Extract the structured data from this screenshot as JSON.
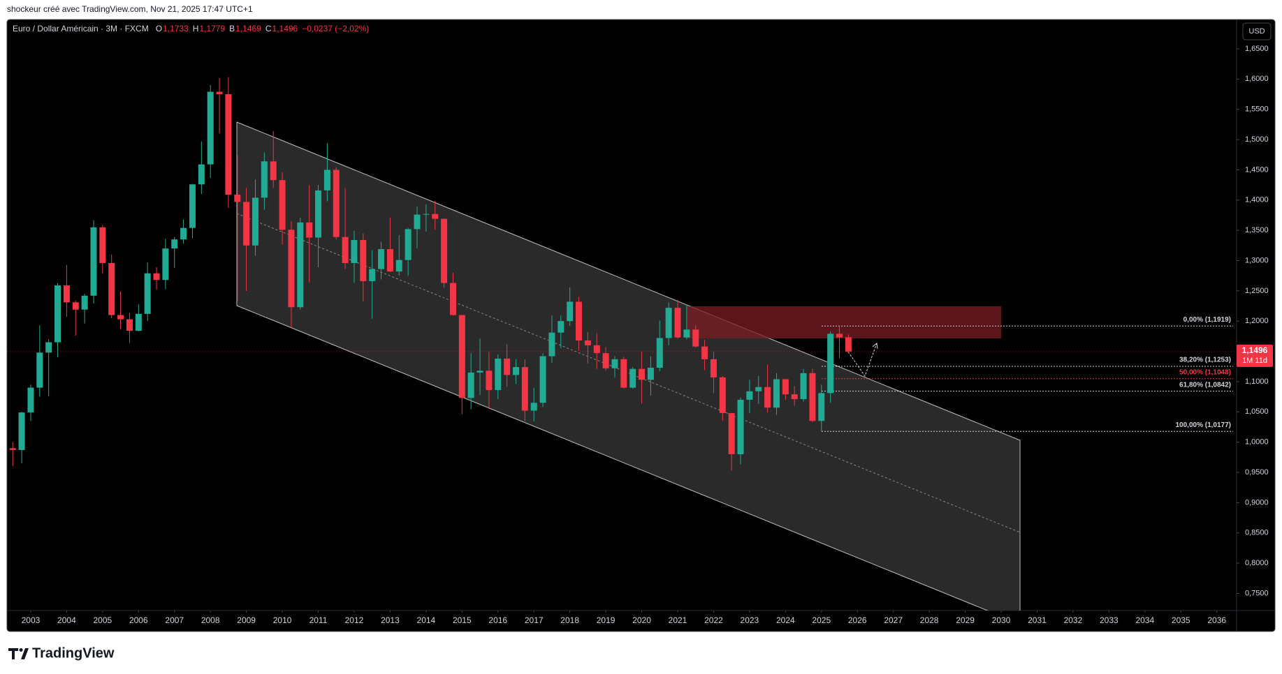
{
  "chart_data": {
    "type": "candlestick",
    "attribution": "shockeur créé avec TradingView.com, Nov 21, 2025 17:47 UTC+1",
    "title": "Euro / Dollar Américain · 3M · FXCM",
    "ohlc_legend": [
      {
        "key": "O",
        "value": "1,1733"
      },
      {
        "key": "H",
        "value": "1,1779"
      },
      {
        "key": "B",
        "value": "1,1469"
      },
      {
        "key": "C",
        "value": "1,1496"
      }
    ],
    "change": "−0,0237 (−2,02%)",
    "currency": "USD",
    "brand": "TradingView",
    "last_price_label": "1,1496",
    "countdown": "1M 11d",
    "up_color": "#22ab94",
    "down_color": "#f23645",
    "grid": false,
    "xlim": [
      2002.34,
      2036.55
    ],
    "xticks": [
      2003,
      2004,
      2005,
      2006,
      2007,
      2008,
      2009,
      2010,
      2011,
      2012,
      2013,
      2014,
      2015,
      2016,
      2017,
      2018,
      2019,
      2020,
      2021,
      2022,
      2023,
      2024,
      2025,
      2026,
      2027,
      2028,
      2029,
      2030,
      2031,
      2032,
      2033,
      2034,
      2035,
      2036
    ],
    "ylim": [
      0.7217,
      1.6984
    ],
    "yticks": [
      {
        "value": 0.75,
        "label": "0,7500"
      },
      {
        "value": 0.8,
        "label": "0,8000"
      },
      {
        "value": 0.85,
        "label": "0,8500"
      },
      {
        "value": 0.9,
        "label": "0,9000"
      },
      {
        "value": 0.95,
        "label": "0,9500"
      },
      {
        "value": 1.0,
        "label": "1,0000"
      },
      {
        "value": 1.05,
        "label": "1,0500"
      },
      {
        "value": 1.1,
        "label": "1,1000"
      },
      {
        "value": 1.15,
        "label": "1,1500"
      },
      {
        "value": 1.2,
        "label": "1,2000"
      },
      {
        "value": 1.25,
        "label": "1,2500"
      },
      {
        "value": 1.3,
        "label": "1,3000"
      },
      {
        "value": 1.35,
        "label": "1,3500"
      },
      {
        "value": 1.4,
        "label": "1,4000"
      },
      {
        "value": 1.45,
        "label": "1,4500"
      },
      {
        "value": 1.5,
        "label": "1,5000"
      },
      {
        "value": 1.55,
        "label": "1,5500"
      },
      {
        "value": 1.6,
        "label": "1,6000"
      },
      {
        "value": 1.65,
        "label": "1,6500"
      }
    ],
    "fib_levels": [
      {
        "label": "0,00% (1,1919)",
        "value": 1.1919,
        "color": "#d1d4dc"
      },
      {
        "label": "38,20% (1,1253)",
        "value": 1.1253,
        "color": "#d1d4dc"
      },
      {
        "label": "50,00% (1,1048)",
        "value": 1.1048,
        "color": "#f23645"
      },
      {
        "label": "61,80% (1,0842)",
        "value": 1.0842,
        "color": "#d1d4dc"
      },
      {
        "label": "100,00% (1,0177)",
        "value": 1.0177,
        "color": "#d1d4dc"
      }
    ],
    "x": [
      2002.5,
      2002.75,
      2003,
      2003.25,
      2003.5,
      2003.75,
      2004,
      2004.25,
      2004.5,
      2004.75,
      2005,
      2005.25,
      2005.5,
      2005.75,
      2006,
      2006.25,
      2006.5,
      2006.75,
      2007,
      2007.25,
      2007.5,
      2007.75,
      2008,
      2008.25,
      2008.5,
      2008.75,
      2009,
      2009.25,
      2009.5,
      2009.75,
      2010,
      2010.25,
      2010.5,
      2010.75,
      2011,
      2011.25,
      2011.5,
      2011.75,
      2012,
      2012.25,
      2012.5,
      2012.75,
      2013,
      2013.25,
      2013.5,
      2013.75,
      2014,
      2014.25,
      2014.5,
      2014.75,
      2015,
      2015.25,
      2015.5,
      2015.75,
      2016,
      2016.25,
      2016.5,
      2016.75,
      2017,
      2017.25,
      2017.5,
      2017.75,
      2018,
      2018.25,
      2018.5,
      2018.75,
      2019,
      2019.25,
      2019.5,
      2019.75,
      2020,
      2020.25,
      2020.5,
      2020.75,
      2021,
      2021.25,
      2021.5,
      2021.75,
      2022,
      2022.25,
      2022.5,
      2022.75,
      2023,
      2023.25,
      2023.5,
      2023.75,
      2024,
      2024.25,
      2024.5,
      2024.75,
      2025,
      2025.25,
      2025.5,
      2025.75
    ],
    "open": [
      0.99,
      0.987,
      1.049,
      1.09,
      1.148,
      1.165,
      1.259,
      1.231,
      1.219,
      1.242,
      1.355,
      1.296,
      1.21,
      1.203,
      1.184,
      1.212,
      1.279,
      1.268,
      1.32,
      1.335,
      1.354,
      1.426,
      1.459,
      1.579,
      1.575,
      1.409,
      1.397,
      1.325,
      1.404,
      1.464,
      1.433,
      1.351,
      1.223,
      1.363,
      1.338,
      1.416,
      1.45,
      1.339,
      1.296,
      1.334,
      1.266,
      1.286,
      1.319,
      1.282,
      1.301,
      1.352,
      1.376,
      1.377,
      1.369,
      1.263,
      1.21,
      1.073,
      1.115,
      1.118,
      1.086,
      1.138,
      1.111,
      1.124,
      1.052,
      1.065,
      1.142,
      1.181,
      1.2,
      1.232,
      1.168,
      1.16,
      1.147,
      1.122,
      1.137,
      1.09,
      1.121,
      1.103,
      1.123,
      1.172,
      1.222,
      1.173,
      1.186,
      1.158,
      1.137,
      1.107,
      1.048,
      0.98,
      1.07,
      1.084,
      1.091,
      1.057,
      1.104,
      1.079,
      1.071,
      1.114,
      1.035,
      1.081,
      1.179,
      1.1733
    ],
    "high": [
      1.0,
      1.05,
      1.095,
      1.193,
      1.17,
      1.263,
      1.293,
      1.234,
      1.245,
      1.367,
      1.359,
      1.31,
      1.249,
      1.214,
      1.228,
      1.297,
      1.289,
      1.336,
      1.339,
      1.368,
      1.427,
      1.497,
      1.59,
      1.602,
      1.603,
      1.474,
      1.42,
      1.434,
      1.479,
      1.514,
      1.446,
      1.365,
      1.371,
      1.425,
      1.425,
      1.494,
      1.454,
      1.42,
      1.349,
      1.345,
      1.317,
      1.331,
      1.371,
      1.342,
      1.354,
      1.389,
      1.393,
      1.399,
      1.37,
      1.28,
      1.21,
      1.147,
      1.171,
      1.149,
      1.145,
      1.162,
      1.137,
      1.137,
      1.09,
      1.147,
      1.209,
      1.209,
      1.256,
      1.24,
      1.182,
      1.18,
      1.157,
      1.142,
      1.141,
      1.124,
      1.15,
      1.142,
      1.201,
      1.231,
      1.235,
      1.227,
      1.193,
      1.169,
      1.149,
      1.109,
      1.048,
      1.074,
      1.103,
      1.109,
      1.128,
      1.114,
      1.104,
      1.092,
      1.121,
      1.121,
      1.095,
      1.183,
      1.192,
      1.1779
    ],
    "low": [
      0.96,
      0.965,
      1.035,
      1.075,
      1.076,
      1.14,
      1.207,
      1.176,
      1.196,
      1.229,
      1.279,
      1.205,
      1.187,
      1.164,
      1.183,
      1.2,
      1.252,
      1.253,
      1.288,
      1.328,
      1.337,
      1.41,
      1.437,
      1.51,
      1.387,
      1.233,
      1.25,
      1.308,
      1.384,
      1.42,
      1.327,
      1.188,
      1.219,
      1.264,
      1.289,
      1.398,
      1.335,
      1.286,
      1.263,
      1.232,
      1.204,
      1.269,
      1.281,
      1.275,
      1.275,
      1.32,
      1.348,
      1.351,
      1.255,
      1.209,
      1.046,
      1.054,
      1.078,
      1.055,
      1.071,
      1.091,
      1.096,
      1.035,
      1.034,
      1.058,
      1.131,
      1.155,
      1.192,
      1.151,
      1.13,
      1.121,
      1.118,
      1.107,
      1.089,
      1.088,
      1.064,
      1.077,
      1.117,
      1.16,
      1.171,
      1.17,
      1.156,
      1.119,
      1.081,
      1.035,
      0.953,
      0.963,
      1.048,
      1.063,
      1.049,
      1.045,
      1.07,
      1.06,
      1.067,
      1.033,
      1.018,
      1.065,
      1.139,
      1.1469
    ],
    "close": [
      0.987,
      1.049,
      1.09,
      1.148,
      1.165,
      1.259,
      1.231,
      1.219,
      1.242,
      1.355,
      1.296,
      1.21,
      1.203,
      1.184,
      1.212,
      1.279,
      1.268,
      1.32,
      1.335,
      1.354,
      1.426,
      1.459,
      1.579,
      1.575,
      1.409,
      1.397,
      1.325,
      1.404,
      1.464,
      1.433,
      1.351,
      1.223,
      1.363,
      1.338,
      1.416,
      1.45,
      1.339,
      1.296,
      1.334,
      1.266,
      1.286,
      1.319,
      1.282,
      1.301,
      1.352,
      1.376,
      1.377,
      1.369,
      1.263,
      1.21,
      1.073,
      1.115,
      1.118,
      1.086,
      1.138,
      1.111,
      1.124,
      1.052,
      1.065,
      1.142,
      1.181,
      1.2,
      1.232,
      1.168,
      1.16,
      1.147,
      1.122,
      1.137,
      1.09,
      1.121,
      1.103,
      1.123,
      1.172,
      1.222,
      1.173,
      1.186,
      1.158,
      1.137,
      1.107,
      1.048,
      0.98,
      1.07,
      1.084,
      1.091,
      1.057,
      1.104,
      1.079,
      1.071,
      1.114,
      1.035,
      1.081,
      1.179,
      1.173,
      1.1496
    ]
  }
}
